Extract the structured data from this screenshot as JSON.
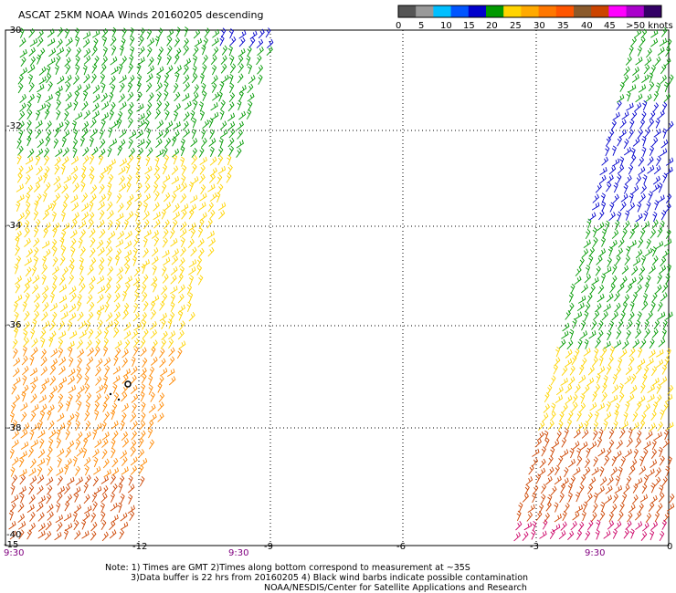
{
  "title": "ASCAT 25KM NOAA Winds 20160205 descending",
  "legend": {
    "colors": [
      "#555555",
      "#999999",
      "#00bfff",
      "#0055ff",
      "#0000cc",
      "#009900",
      "#ffd400",
      "#ffaa00",
      "#ff7700",
      "#ff5500",
      "#8b5a2b",
      "#cc4400",
      "#ff00ff",
      "#aa00cc",
      "#330066"
    ],
    "ticks": [
      "0",
      "5",
      "10",
      "15",
      "20",
      "25",
      "30",
      "35",
      "40",
      "45",
      ">50 knots"
    ]
  },
  "axes": {
    "lat_labels": [
      "-30",
      "-32",
      "-34",
      "-36",
      "-38",
      "-40"
    ],
    "lon_labels": [
      "-15",
      "-12",
      "-9",
      "-6",
      "-3",
      "0"
    ]
  },
  "times": [
    "9:30",
    "9:30",
    "9:30"
  ],
  "notes": [
    "Note: 1) Times are GMT 2)Times along bottom correspond to measurement at ~35S",
    "3)Data buffer is 22 hrs from 20160205 4) Black wind barbs indicate possible contamination",
    "NOAA/NESDIS/Center for Satellite Applications and Research"
  ],
  "wind_colors": {
    "green": "#009900",
    "blue": "#0000cc",
    "yellow": "#ffd400",
    "orange": "#ff8800",
    "red_orange": "#cc4400",
    "magenta": "#cc0066"
  }
}
